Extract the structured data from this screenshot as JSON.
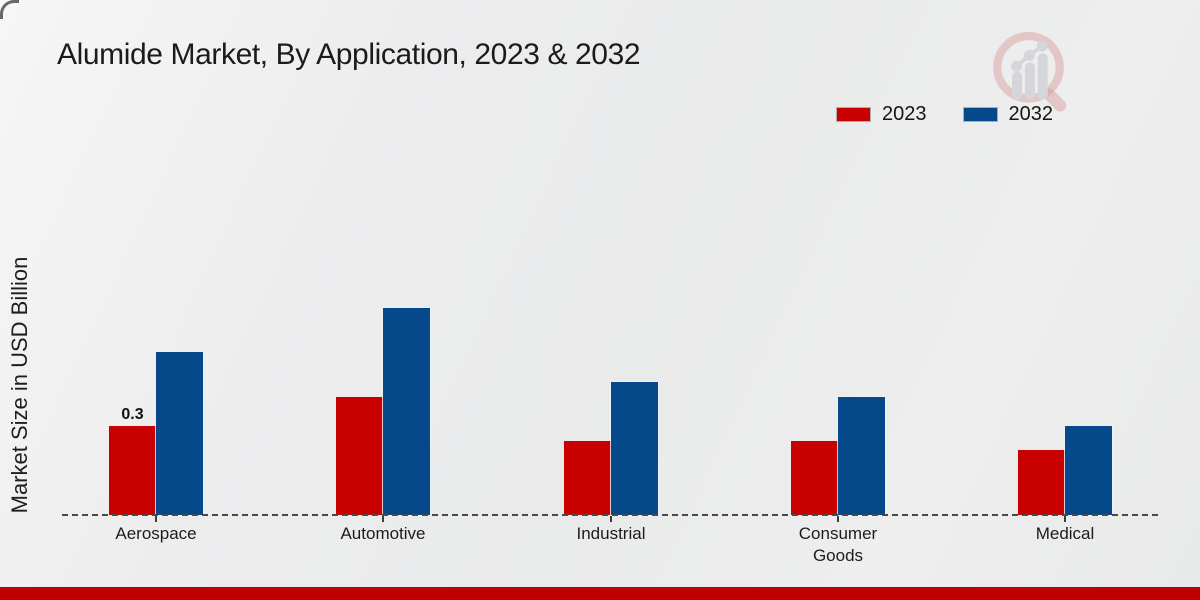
{
  "title": "Alumide Market, By Application, 2023 & 2032",
  "y_axis_label": "Market Size in USD Billion",
  "legend": [
    {
      "label": "2023",
      "color": "#c80000"
    },
    {
      "label": "2032",
      "color": "#05498a"
    }
  ],
  "colors": {
    "series_2023": "#c80000",
    "series_2032": "#05498a",
    "footer_band": "#bf0000",
    "baseline": "#4a4a4a"
  },
  "watermark_icon": "magnifier-bar-chart-logo",
  "chart_data": {
    "type": "bar",
    "categories": [
      "Aerospace",
      "Automotive",
      "Industrial",
      "Consumer Goods",
      "Medical"
    ],
    "series": [
      {
        "name": "2023",
        "color": "#c80000",
        "values": [
          0.3,
          0.4,
          0.25,
          0.25,
          0.22
        ]
      },
      {
        "name": "2032",
        "color": "#05498a",
        "values": [
          0.55,
          0.7,
          0.45,
          0.4,
          0.3
        ]
      }
    ],
    "bar_labels": [
      {
        "category": "Aerospace",
        "series": "2023",
        "text": "0.3"
      }
    ],
    "title": "Alumide Market, By Application, 2023 & 2032",
    "xlabel": "",
    "ylabel": "Market Size in USD Billion",
    "ylim": [
      0,
      0.75
    ],
    "grid": false,
    "y_axis_ticks_visible": false,
    "baseline_style": "dashed",
    "legend_position": "top-right"
  }
}
